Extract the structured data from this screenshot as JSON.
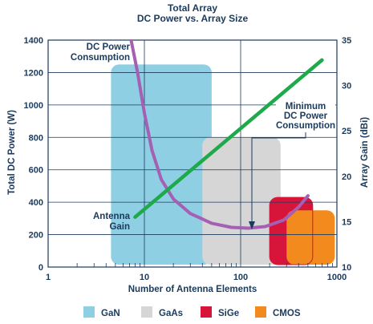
{
  "chart_data": {
    "type": "area",
    "title": "Total Array",
    "subtitle": "DC Power vs. Array Size",
    "xlabel": "Number of Antenna Elements",
    "ylabel_left": "Total DC Power (W)",
    "ylabel_right": "Array Gain (dBi)",
    "x_scale": "log",
    "xlim": [
      1,
      1000
    ],
    "ylim_left": [
      0,
      1400
    ],
    "ylim_right": [
      10,
      35
    ],
    "x_ticks": [
      "1",
      "10",
      "100",
      "1000"
    ],
    "y_left_ticks": [
      "0",
      "200",
      "400",
      "600",
      "800",
      "1000",
      "1200",
      "1400"
    ],
    "y_right_ticks": [
      "10",
      "15",
      "20",
      "25",
      "30",
      "35"
    ],
    "grid": true,
    "regions": [
      {
        "name": "GaN",
        "color": "#8ecfe4",
        "x_range": [
          4.5,
          50
        ],
        "power_max": 1250
      },
      {
        "name": "GaAs",
        "color": "#d6d6d6",
        "x_range": [
          40,
          260
        ],
        "power_max": 800
      },
      {
        "name": "SiGe",
        "color": "#d7153a",
        "x_range": [
          200,
          560
        ],
        "power_max": 430
      },
      {
        "name": "CMOS",
        "color": "#f28a1e",
        "x_range": [
          300,
          950
        ],
        "power_max": 350
      }
    ],
    "series": [
      {
        "name": "DC Power Consumption",
        "axis": "left",
        "color": "#a55fb3",
        "x": [
          7,
          8.5,
          10,
          12,
          15,
          20,
          30,
          50,
          80,
          120,
          180,
          280,
          400,
          500
        ],
        "y": [
          1450,
          1200,
          950,
          720,
          540,
          420,
          330,
          270,
          245,
          240,
          250,
          290,
          370,
          440
        ]
      },
      {
        "name": "Antenna Gain",
        "axis": "right",
        "color": "#1eaa4a",
        "x": [
          8,
          700
        ],
        "y": [
          15.5,
          32.8
        ]
      }
    ],
    "annotations": [
      {
        "text": [
          "DC Power",
          "Consumption"
        ]
      },
      {
        "text": [
          "Antenna",
          "Gain"
        ]
      },
      {
        "text": [
          "Minimum",
          "DC Power",
          "Consumption"
        ]
      }
    ],
    "legend": {
      "position": "bottom",
      "items": [
        {
          "label": "GaN",
          "color": "#8ecfe4"
        },
        {
          "label": "GaAs",
          "color": "#d6d6d6"
        },
        {
          "label": "SiGe",
          "color": "#d7153a"
        },
        {
          "label": "CMOS",
          "color": "#f28a1e"
        }
      ]
    }
  }
}
